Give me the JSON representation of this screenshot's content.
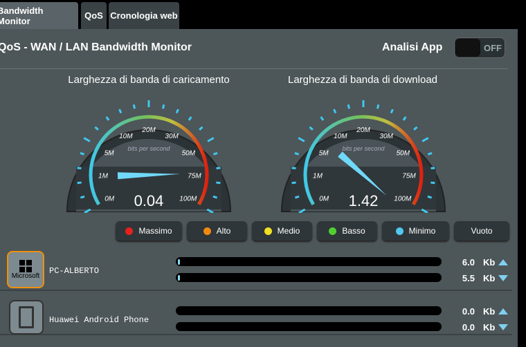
{
  "tabs": [
    {
      "label": "Bandwidth Monitor",
      "active": true
    },
    {
      "label": "QoS"
    },
    {
      "label": "Cronologia web"
    }
  ],
  "header": {
    "title": "QoS - WAN / LAN Bandwidth Monitor",
    "app_analysis_label": "Analisi App",
    "toggle_state": "OFF"
  },
  "gauges": [
    {
      "title": "Larghezza di banda di caricamento",
      "value": "0.04",
      "unit_label": "bits per second",
      "needle_fraction": 0.12
    },
    {
      "title": "Larghezza di banda di download",
      "value": "1.42",
      "unit_label": "bits per second",
      "needle_fraction": 0.3
    }
  ],
  "scale_labels": [
    "0M",
    "1M",
    "5M",
    "10M",
    "20M",
    "30M",
    "50M",
    "75M",
    "100M"
  ],
  "legend": [
    {
      "label": "Massimo",
      "color": "#e82020"
    },
    {
      "label": "Alto",
      "color": "#f08a10"
    },
    {
      "label": "Medio",
      "color": "#f0e020"
    },
    {
      "label": "Basso",
      "color": "#50d030"
    },
    {
      "label": "Minimo",
      "color": "#50c8f0"
    },
    {
      "label": "Vuoto",
      "color": ""
    }
  ],
  "devices": [
    {
      "name": "PC-ALBERTO",
      "icon": "microsoft-icon",
      "icon_label": "Microsoft",
      "upload": "6.0",
      "download": "5.5",
      "unit": "Kb",
      "upload_fraction": 0.01,
      "download_fraction": 0.01
    },
    {
      "name": "Huawei Android Phone",
      "icon": "phone-icon",
      "upload": "0.0",
      "download": "0.0",
      "unit": "Kb",
      "upload_fraction": 0,
      "download_fraction": 0
    }
  ]
}
